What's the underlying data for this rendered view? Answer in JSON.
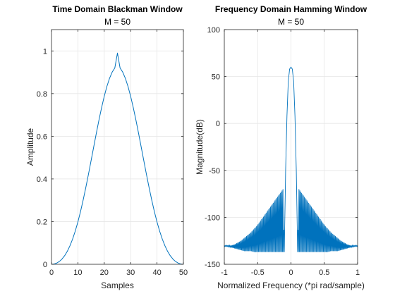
{
  "chart_data": [
    {
      "type": "line",
      "title": "Time Domain Blackman Window",
      "subtitle": "M = 50",
      "xlabel": "Samples",
      "ylabel": "Amplitude",
      "xlim": [
        0,
        50
      ],
      "ylim": [
        0,
        1.1
      ],
      "xticks": [
        0,
        10,
        20,
        30,
        40,
        50
      ],
      "yticks": [
        0,
        0.2,
        0.4,
        0.6,
        0.8,
        1
      ],
      "xtick_labels": [
        "0",
        "10",
        "20",
        "30",
        "40",
        "50"
      ],
      "ytick_labels": [
        "0",
        "0.2",
        "0.4",
        "0.6",
        "0.8",
        "1"
      ],
      "grid": true,
      "series": [
        {
          "color": "#0072bd",
          "x": [
            0,
            1,
            2,
            3,
            4,
            5,
            6,
            7,
            8,
            9,
            10,
            11,
            12,
            13,
            14,
            15,
            16,
            17,
            18,
            19,
            20,
            21,
            22,
            23,
            24,
            25,
            26,
            27,
            28,
            29,
            30,
            31,
            32,
            33,
            34,
            35,
            36,
            37,
            38,
            39,
            40,
            41,
            42,
            43,
            44,
            45,
            46,
            47,
            48,
            49,
            50
          ],
          "y": [
            0,
            0.0014,
            0.0058,
            0.0134,
            0.0249,
            0.0405,
            0.061,
            0.0868,
            0.1181,
            0.1553,
            0.1983,
            0.247,
            0.3009,
            0.3592,
            0.421,
            0.4851,
            0.55,
            0.6143,
            0.6765,
            0.7347,
            0.7876,
            0.8336,
            0.8716,
            0.9007,
            0.92,
            0.99,
            0.92,
            0.9007,
            0.8716,
            0.8336,
            0.7876,
            0.7347,
            0.6765,
            0.6143,
            0.55,
            0.4851,
            0.421,
            0.3592,
            0.3009,
            0.247,
            0.1983,
            0.1553,
            0.1181,
            0.0868,
            0.061,
            0.0405,
            0.0249,
            0.0134,
            0.0058,
            0.0014,
            0
          ]
        }
      ]
    },
    {
      "type": "line",
      "title": "Frequency Domain Hamming Window",
      "subtitle": "M = 50",
      "xlabel": "Normalized Frequency (*pi rad/sample)",
      "ylabel": "Magnitude(dB)",
      "xlim": [
        -1,
        1
      ],
      "ylim": [
        -150,
        100
      ],
      "xticks": [
        -1,
        -0.5,
        0,
        0.5,
        1
      ],
      "yticks": [
        -150,
        -100,
        -50,
        0,
        50,
        100
      ],
      "xtick_labels": [
        "-1",
        "-0.5",
        "0",
        "0.5",
        "1"
      ],
      "ytick_labels": [
        "-150",
        "-100",
        "-50",
        "0",
        "50",
        "100"
      ],
      "grid": true,
      "series": [
        {
          "color": "#0072bd",
          "x": [
            -1,
            -0.95,
            -0.9,
            -0.85,
            -0.8,
            -0.75,
            -0.7,
            -0.65,
            -0.6,
            -0.55,
            -0.5,
            -0.45,
            -0.4,
            -0.35,
            -0.3,
            -0.25,
            -0.2,
            -0.15,
            -0.12,
            -0.1,
            -0.08,
            -0.06,
            -0.04,
            -0.02,
            0,
            0.02,
            0.04,
            0.06,
            0.08,
            0.1,
            0.12,
            0.15,
            0.2,
            0.25,
            0.3,
            0.35,
            0.4,
            0.45,
            0.5,
            0.55,
            0.6,
            0.65,
            0.7,
            0.75,
            0.8,
            0.85,
            0.9,
            0.95,
            1
          ],
          "y": [
            -130,
            -130,
            -130,
            -129,
            -127,
            -125,
            -122,
            -119,
            -116,
            -112,
            -108,
            -103,
            -98,
            -93,
            -88,
            -83,
            -78,
            -73,
            -70,
            -135,
            -50,
            8,
            45,
            58,
            60,
            58,
            45,
            8,
            -50,
            -135,
            -70,
            -73,
            -78,
            -83,
            -88,
            -93,
            -98,
            -103,
            -108,
            -112,
            -116,
            -119,
            -122,
            -125,
            -127,
            -129,
            -130,
            -130,
            -130
          ],
          "y_lower": [
            -131,
            -131,
            -132,
            -133,
            -134,
            -135,
            -136,
            -136,
            -136,
            -137,
            -137,
            -137,
            -137,
            -137,
            -137,
            -137,
            -137,
            -137,
            -137,
            -137,
            -50,
            8,
            45,
            58,
            60,
            58,
            45,
            8,
            -50,
            -137,
            -137,
            -137,
            -137,
            -137,
            -137,
            -137,
            -137,
            -137,
            -137,
            -137,
            -136,
            -136,
            -136,
            -135,
            -134,
            -133,
            -132,
            -131,
            -131
          ]
        }
      ]
    }
  ]
}
